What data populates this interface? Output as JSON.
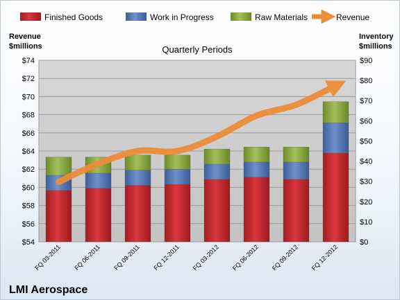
{
  "chart_data": {
    "type": "bar",
    "subtitle": "Quarterly Periods",
    "company": "LMI Aerospace",
    "left_axis": {
      "title_line1": "Revenue",
      "title_line2": "$millions",
      "range": [
        54,
        74
      ],
      "step": 2,
      "prefix": "$"
    },
    "right_axis": {
      "title_line1": "Inventory",
      "title_line2": "$millions",
      "range": [
        0,
        90
      ],
      "step": 10,
      "prefix": "$"
    },
    "categories": [
      "FQ 03-2011",
      "FQ 06-2011",
      "FQ 09-2011",
      "FQ 12-2011",
      "FQ 03-2012",
      "FQ 06-2012",
      "FQ 09-2012",
      "FQ 12-2012"
    ],
    "series": [
      {
        "name": "Finished Goods",
        "axis": "right",
        "stacked": true,
        "color": "#c0272d",
        "values": [
          25.5,
          26.5,
          28.0,
          28.5,
          31.0,
          32.0,
          31.0,
          44.0
        ]
      },
      {
        "name": "Work in Progress",
        "axis": "right",
        "stacked": true,
        "color": "#4f73b4",
        "values": [
          7.5,
          7.5,
          7.5,
          7.5,
          7.5,
          7.5,
          8.5,
          15.0
        ]
      },
      {
        "name": "Raw Materials",
        "axis": "right",
        "stacked": true,
        "color": "#8caa3c",
        "values": [
          9.0,
          8.0,
          7.5,
          7.0,
          7.5,
          7.5,
          7.5,
          10.5
        ]
      },
      {
        "name": "Revenue",
        "axis": "left",
        "type": "line",
        "color": "#ed8c39",
        "values": [
          60.6,
          62.6,
          64.0,
          64.0,
          65.6,
          67.9,
          69.1,
          71.2
        ]
      }
    ],
    "grid": true,
    "legend": "top"
  }
}
